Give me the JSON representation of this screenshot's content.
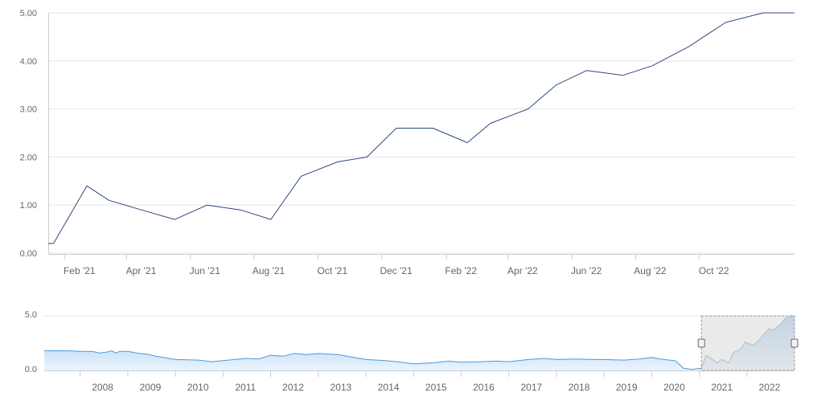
{
  "colors": {
    "main_line": "#2f4a7a",
    "nav_line": "#4a9ad8",
    "nav_fill_top": "#9cc6ec",
    "nav_fill_bottom": "#eaf4fd",
    "grid": "#e6e6e6",
    "axis": "#cccccc",
    "selection_fill": "#dcdcdc",
    "selection_border": "#999999"
  },
  "chart_data": [
    {
      "type": "line",
      "title": "",
      "xlabel": "",
      "ylabel": "",
      "ylim": [
        0,
        5
      ],
      "yticks": [
        "0.00",
        "1.00",
        "2.00",
        "3.00",
        "4.00",
        "5.00"
      ],
      "xticks": [
        {
          "label": "Feb '21",
          "date": "2021-02-01"
        },
        {
          "label": "Apr '21",
          "date": "2021-04-01"
        },
        {
          "label": "Jun '21",
          "date": "2021-06-01"
        },
        {
          "label": "Aug '21",
          "date": "2021-08-01"
        },
        {
          "label": "Oct '21",
          "date": "2021-10-01"
        },
        {
          "label": "Dec '21",
          "date": "2021-12-01"
        },
        {
          "label": "Feb '22",
          "date": "2022-02-01"
        },
        {
          "label": "Apr '22",
          "date": "2022-04-01"
        },
        {
          "label": "Jun '22",
          "date": "2022-06-01"
        },
        {
          "label": "Aug '22",
          "date": "2022-08-01"
        },
        {
          "label": "Oct '22",
          "date": "2022-10-01"
        }
      ],
      "xrange": [
        "2021-01-16",
        "2022-12-31"
      ],
      "grid": true,
      "series": [
        {
          "points": [
            [
              "2021-01-16",
              0.2
            ],
            [
              "2021-01-21",
              0.2
            ],
            [
              "2021-02-22",
              1.4
            ],
            [
              "2021-03-15",
              1.1
            ],
            [
              "2021-04-15",
              0.9
            ],
            [
              "2021-05-17",
              0.7
            ],
            [
              "2021-06-17",
              1.0
            ],
            [
              "2021-07-19",
              0.9
            ],
            [
              "2021-08-17",
              0.7
            ],
            [
              "2021-09-15",
              1.6
            ],
            [
              "2021-10-20",
              1.9
            ],
            [
              "2021-11-17",
              2.0
            ],
            [
              "2021-12-15",
              2.6
            ],
            [
              "2022-01-19",
              2.6
            ],
            [
              "2022-02-21",
              2.3
            ],
            [
              "2022-03-15",
              2.7
            ],
            [
              "2022-04-20",
              3.0
            ],
            [
              "2022-05-17",
              3.5
            ],
            [
              "2022-06-15",
              3.8
            ],
            [
              "2022-07-20",
              3.7
            ],
            [
              "2022-08-17",
              3.9
            ],
            [
              "2022-09-21",
              4.3
            ],
            [
              "2022-10-26",
              4.8
            ],
            [
              "2022-12-01",
              5.0
            ],
            [
              "2022-12-31",
              5.0
            ]
          ]
        }
      ]
    },
    {
      "type": "area",
      "role": "navigator",
      "ylim": [
        0,
        5
      ],
      "yticks": [
        "0.0",
        "5.0"
      ],
      "xticks": [
        "2008",
        "2009",
        "2010",
        "2011",
        "2012",
        "2013",
        "2014",
        "2015",
        "2016",
        "2017",
        "2018",
        "2019",
        "2020",
        "2021",
        "2022"
      ],
      "xrange": [
        "2007-04-01",
        "2022-12-31"
      ],
      "selection": [
        "2021-01-16",
        "2022-12-31"
      ],
      "series": [
        {
          "points": [
            [
              "2007-04-01",
              1.8
            ],
            [
              "2007-10-01",
              1.8
            ],
            [
              "2008-01-01",
              1.75
            ],
            [
              "2008-04-01",
              1.75
            ],
            [
              "2008-06-01",
              1.6
            ],
            [
              "2008-08-01",
              1.7
            ],
            [
              "2008-09-01",
              1.8
            ],
            [
              "2008-10-01",
              1.6
            ],
            [
              "2008-11-01",
              1.75
            ],
            [
              "2009-01-01",
              1.75
            ],
            [
              "2009-04-01",
              1.55
            ],
            [
              "2009-06-01",
              1.5
            ],
            [
              "2009-08-01",
              1.3
            ],
            [
              "2009-10-01",
              1.2
            ],
            [
              "2010-01-01",
              1.0
            ],
            [
              "2010-07-01",
              0.95
            ],
            [
              "2010-10-01",
              0.8
            ],
            [
              "2011-01-01",
              0.9
            ],
            [
              "2011-07-01",
              1.1
            ],
            [
              "2011-10-01",
              1.05
            ],
            [
              "2012-01-01",
              1.4
            ],
            [
              "2012-04-01",
              1.3
            ],
            [
              "2012-07-01",
              1.55
            ],
            [
              "2012-10-01",
              1.45
            ],
            [
              "2013-01-01",
              1.55
            ],
            [
              "2013-06-01",
              1.45
            ],
            [
              "2013-10-01",
              1.2
            ],
            [
              "2014-01-01",
              1.0
            ],
            [
              "2014-06-01",
              0.9
            ],
            [
              "2014-10-01",
              0.75
            ],
            [
              "2015-01-01",
              0.6
            ],
            [
              "2015-06-01",
              0.7
            ],
            [
              "2015-10-01",
              0.85
            ],
            [
              "2016-01-01",
              0.75
            ],
            [
              "2016-06-01",
              0.8
            ],
            [
              "2016-10-01",
              0.85
            ],
            [
              "2017-01-01",
              0.8
            ],
            [
              "2017-06-01",
              1.0
            ],
            [
              "2017-10-01",
              1.1
            ],
            [
              "2018-01-01",
              1.0
            ],
            [
              "2018-06-01",
              1.05
            ],
            [
              "2018-10-01",
              1.0
            ],
            [
              "2019-01-01",
              1.0
            ],
            [
              "2019-06-01",
              0.95
            ],
            [
              "2019-10-01",
              1.05
            ],
            [
              "2020-01-01",
              1.2
            ],
            [
              "2020-04-01",
              1.0
            ],
            [
              "2020-07-01",
              0.9
            ],
            [
              "2020-09-01",
              0.2
            ],
            [
              "2020-11-01",
              0.1
            ],
            [
              "2021-01-16",
              0.2
            ],
            [
              "2021-02-22",
              1.4
            ],
            [
              "2021-05-17",
              0.7
            ],
            [
              "2021-06-17",
              1.0
            ],
            [
              "2021-08-17",
              0.7
            ],
            [
              "2021-09-15",
              1.6
            ],
            [
              "2021-11-17",
              2.0
            ],
            [
              "2021-12-15",
              2.6
            ],
            [
              "2022-02-21",
              2.3
            ],
            [
              "2022-04-20",
              3.0
            ],
            [
              "2022-06-15",
              3.8
            ],
            [
              "2022-07-20",
              3.7
            ],
            [
              "2022-09-21",
              4.3
            ],
            [
              "2022-10-26",
              4.8
            ],
            [
              "2022-12-31",
              5.0
            ]
          ]
        }
      ]
    }
  ]
}
